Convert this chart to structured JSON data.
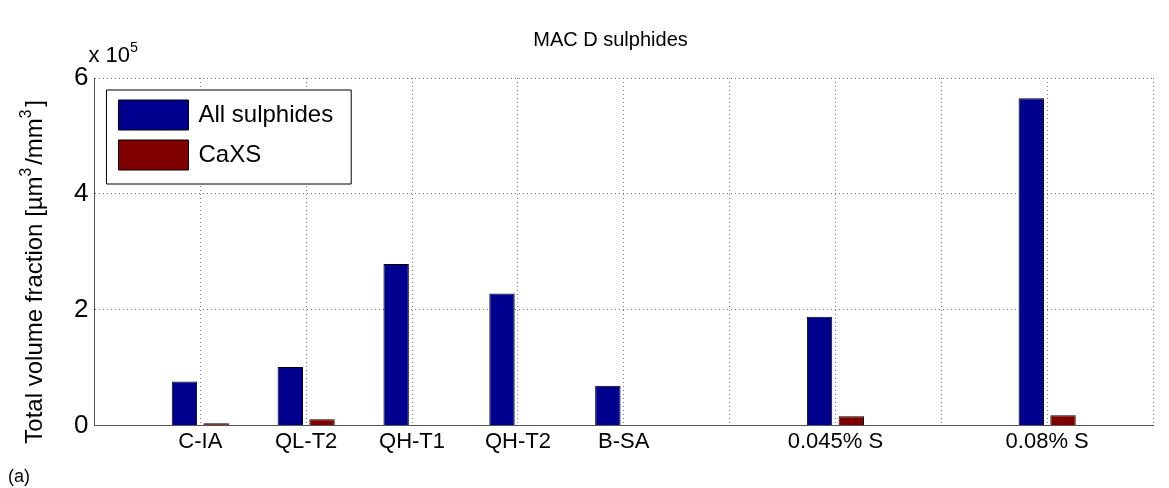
{
  "chart_data": {
    "type": "bar",
    "title": "MAC D sulphides",
    "ylabel": "Total volume fraction [µm$^{3}$/mm$^{3}$]",
    "categories": [
      null,
      "C-IA",
      "QL-T2",
      "QH-T1",
      "QH-T2",
      "B-SA",
      null,
      "0.045% S",
      null,
      "0.08% S",
      null
    ],
    "series": [
      {
        "name": "All sulphides",
        "color": "#00008f",
        "values": [
          null,
          0.76,
          1.01,
          2.79,
          2.28,
          0.69,
          null,
          1.88,
          null,
          5.65,
          null
        ]
      },
      {
        "name": "CaXS",
        "color": "#800000",
        "values": [
          null,
          0.04,
          0.11,
          0.01,
          0.01,
          0.01,
          null,
          0.16,
          null,
          0.18,
          null
        ]
      }
    ],
    "ylim": [
      0,
      6
    ],
    "yticks": [
      0,
      2,
      4,
      6
    ],
    "annotations": [
      "x 10$^{5}$",
      "(a)"
    ],
    "grid": true,
    "legend": "top left"
  }
}
